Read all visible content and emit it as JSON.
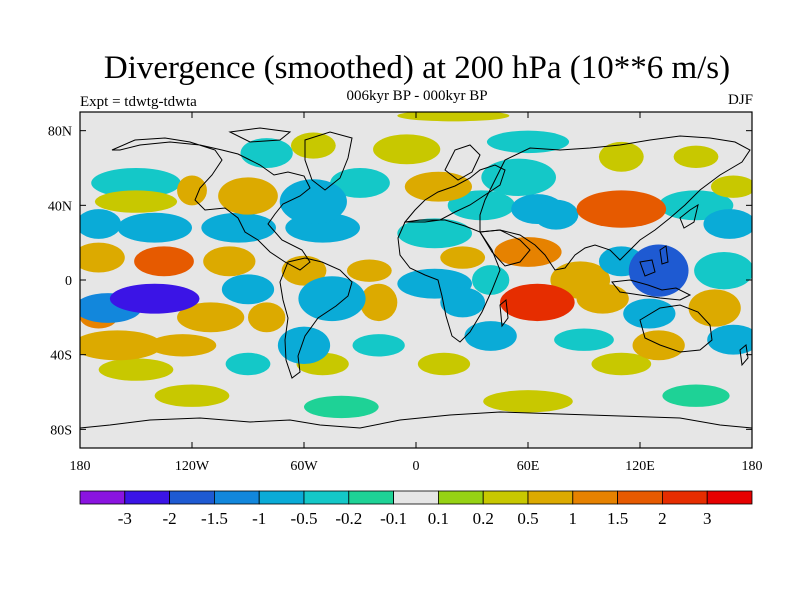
{
  "chart_data": {
    "type": "heatmap",
    "title": "Divergence (smoothed) at 200 hPa (10**6 m/s)",
    "subtitle": "006kyr BP - 000kyr BP",
    "left_label": "Expt = tdwtg-tdwta",
    "right_label": "DJF",
    "x_ticks": [
      "180",
      "120W",
      "60W",
      "0",
      "60E",
      "120E",
      "180"
    ],
    "x_tick_values": [
      -180,
      -120,
      -60,
      0,
      60,
      120,
      180
    ],
    "y_ticks": [
      "80N",
      "40N",
      "0",
      "40S",
      "80S"
    ],
    "y_tick_values": [
      80,
      40,
      0,
      -40,
      -80
    ],
    "xlim": [
      -180,
      180
    ],
    "ylim": [
      -90,
      90
    ],
    "colorbar": {
      "levels": [
        "-3",
        "-2",
        "-1.5",
        "-1",
        "-0.5",
        "-0.2",
        "-0.1",
        "0.1",
        "0.2",
        "0.5",
        "1",
        "1.5",
        "2",
        "3"
      ],
      "colors": [
        "#8a14e0",
        "#3b14e6",
        "#1e5ad2",
        "#1287dc",
        "#0aabd7",
        "#14c8c8",
        "#1ed296",
        "#e6e6e6",
        "#96d214",
        "#c8c800",
        "#dcaa00",
        "#e68200",
        "#e65a00",
        "#e62d00",
        "#e60000"
      ]
    },
    "anomaly_cells": [
      {
        "lon": 20,
        "lat": 88,
        "rx": 30,
        "ry": 3,
        "v": 0.2
      },
      {
        "lon": -80,
        "lat": 68,
        "rx": 14,
        "ry": 8,
        "v": -0.3
      },
      {
        "lon": -55,
        "lat": 72,
        "rx": 12,
        "ry": 7,
        "v": 0.3
      },
      {
        "lon": -5,
        "lat": 70,
        "rx": 18,
        "ry": 8,
        "v": 0.3
      },
      {
        "lon": 60,
        "lat": 74,
        "rx": 22,
        "ry": 6,
        "v": -0.3
      },
      {
        "lon": 110,
        "lat": 66,
        "rx": 12,
        "ry": 8,
        "v": 0.3
      },
      {
        "lon": 150,
        "lat": 66,
        "rx": 12,
        "ry": 6,
        "v": 0.3
      },
      {
        "lon": -150,
        "lat": 52,
        "rx": 24,
        "ry": 8,
        "v": -0.3
      },
      {
        "lon": -150,
        "lat": 42,
        "rx": 22,
        "ry": 6,
        "v": 0.3
      },
      {
        "lon": -120,
        "lat": 48,
        "rx": 8,
        "ry": 8,
        "v": 0.6
      },
      {
        "lon": -90,
        "lat": 45,
        "rx": 16,
        "ry": 10,
        "v": 0.8
      },
      {
        "lon": -55,
        "lat": 42,
        "rx": 18,
        "ry": 12,
        "v": -1.0
      },
      {
        "lon": -30,
        "lat": 52,
        "rx": 16,
        "ry": 8,
        "v": -0.5
      },
      {
        "lon": 12,
        "lat": 50,
        "rx": 18,
        "ry": 8,
        "v": 0.5
      },
      {
        "lon": 55,
        "lat": 55,
        "rx": 20,
        "ry": 10,
        "v": -0.5
      },
      {
        "lon": 35,
        "lat": 40,
        "rx": 18,
        "ry": 8,
        "v": -0.4
      },
      {
        "lon": 65,
        "lat": 38,
        "rx": 14,
        "ry": 8,
        "v": -0.6
      },
      {
        "lon": 110,
        "lat": 38,
        "rx": 24,
        "ry": 10,
        "v": 1.6
      },
      {
        "lon": 150,
        "lat": 40,
        "rx": 20,
        "ry": 8,
        "v": -0.4
      },
      {
        "lon": 168,
        "lat": 30,
        "rx": 14,
        "ry": 8,
        "v": -0.8
      },
      {
        "lon": 170,
        "lat": 50,
        "rx": 12,
        "ry": 6,
        "v": 0.4
      },
      {
        "lon": 75,
        "lat": 35,
        "rx": 12,
        "ry": 8,
        "v": -1.0
      },
      {
        "lon": -170,
        "lat": 30,
        "rx": 12,
        "ry": 8,
        "v": -1.0
      },
      {
        "lon": -140,
        "lat": 28,
        "rx": 20,
        "ry": 8,
        "v": -0.6
      },
      {
        "lon": -95,
        "lat": 28,
        "rx": 20,
        "ry": 8,
        "v": -0.6
      },
      {
        "lon": -50,
        "lat": 28,
        "rx": 20,
        "ry": 8,
        "v": -0.6
      },
      {
        "lon": 10,
        "lat": 25,
        "rx": 20,
        "ry": 8,
        "v": -0.5
      },
      {
        "lon": 60,
        "lat": 15,
        "rx": 18,
        "ry": 8,
        "v": 1.1
      },
      {
        "lon": 25,
        "lat": 12,
        "rx": 12,
        "ry": 6,
        "v": 0.8
      },
      {
        "lon": -170,
        "lat": 12,
        "rx": 14,
        "ry": 8,
        "v": 0.8
      },
      {
        "lon": -135,
        "lat": 10,
        "rx": 16,
        "ry": 8,
        "v": 1.5
      },
      {
        "lon": -100,
        "lat": 10,
        "rx": 14,
        "ry": 8,
        "v": 0.6
      },
      {
        "lon": -60,
        "lat": 5,
        "rx": 12,
        "ry": 8,
        "v": 0.5
      },
      {
        "lon": -25,
        "lat": 5,
        "rx": 12,
        "ry": 6,
        "v": 0.5
      },
      {
        "lon": -90,
        "lat": -5,
        "rx": 14,
        "ry": 8,
        "v": -0.6
      },
      {
        "lon": -45,
        "lat": -10,
        "rx": 18,
        "ry": 12,
        "v": -0.6
      },
      {
        "lon": 10,
        "lat": -2,
        "rx": 20,
        "ry": 8,
        "v": -0.8
      },
      {
        "lon": 40,
        "lat": 0,
        "rx": 10,
        "ry": 8,
        "v": -0.4
      },
      {
        "lon": 88,
        "lat": 0,
        "rx": 16,
        "ry": 10,
        "v": 0.8
      },
      {
        "lon": 110,
        "lat": 10,
        "rx": 12,
        "ry": 8,
        "v": -1.0
      },
      {
        "lon": 130,
        "lat": 5,
        "rx": 16,
        "ry": 14,
        "v": -2.0
      },
      {
        "lon": 165,
        "lat": 5,
        "rx": 16,
        "ry": 10,
        "v": -0.4
      },
      {
        "lon": -140,
        "lat": -10,
        "rx": 24,
        "ry": 8,
        "v": -2.2
      },
      {
        "lon": -165,
        "lat": -15,
        "rx": 18,
        "ry": 8,
        "v": -1.5
      },
      {
        "lon": -170,
        "lat": -20,
        "rx": 10,
        "ry": 6,
        "v": 1.2
      },
      {
        "lon": -110,
        "lat": -20,
        "rx": 18,
        "ry": 8,
        "v": 0.6
      },
      {
        "lon": -80,
        "lat": -20,
        "rx": 10,
        "ry": 8,
        "v": 0.6
      },
      {
        "lon": -20,
        "lat": -12,
        "rx": 10,
        "ry": 10,
        "v": 0.5
      },
      {
        "lon": 25,
        "lat": -12,
        "rx": 12,
        "ry": 8,
        "v": -0.8
      },
      {
        "lon": 65,
        "lat": -12,
        "rx": 20,
        "ry": 10,
        "v": 2.0
      },
      {
        "lon": 100,
        "lat": -10,
        "rx": 14,
        "ry": 8,
        "v": 0.8
      },
      {
        "lon": 125,
        "lat": -18,
        "rx": 14,
        "ry": 8,
        "v": -0.8
      },
      {
        "lon": 160,
        "lat": -15,
        "rx": 14,
        "ry": 10,
        "v": 0.6
      },
      {
        "lon": -160,
        "lat": -35,
        "rx": 24,
        "ry": 8,
        "v": 0.5
      },
      {
        "lon": -125,
        "lat": -35,
        "rx": 18,
        "ry": 6,
        "v": 0.6
      },
      {
        "lon": -60,
        "lat": -35,
        "rx": 14,
        "ry": 10,
        "v": -0.8
      },
      {
        "lon": -20,
        "lat": -35,
        "rx": 14,
        "ry": 6,
        "v": -0.5
      },
      {
        "lon": 40,
        "lat": -30,
        "rx": 14,
        "ry": 8,
        "v": -0.6
      },
      {
        "lon": 90,
        "lat": -32,
        "rx": 16,
        "ry": 6,
        "v": -0.5
      },
      {
        "lon": 130,
        "lat": -35,
        "rx": 14,
        "ry": 8,
        "v": 0.5
      },
      {
        "lon": 170,
        "lat": -32,
        "rx": 14,
        "ry": 8,
        "v": -0.6
      },
      {
        "lon": -90,
        "lat": -45,
        "rx": 12,
        "ry": 6,
        "v": -0.4
      },
      {
        "lon": -50,
        "lat": -45,
        "rx": 14,
        "ry": 6,
        "v": 0.4
      },
      {
        "lon": 15,
        "lat": -45,
        "rx": 14,
        "ry": 6,
        "v": 0.4
      },
      {
        "lon": -150,
        "lat": -48,
        "rx": 20,
        "ry": 6,
        "v": 0.3
      },
      {
        "lon": 110,
        "lat": -45,
        "rx": 16,
        "ry": 6,
        "v": 0.3
      },
      {
        "lon": -120,
        "lat": -62,
        "rx": 20,
        "ry": 6,
        "v": 0.2
      },
      {
        "lon": -40,
        "lat": -68,
        "rx": 20,
        "ry": 6,
        "v": -0.2
      },
      {
        "lon": 60,
        "lat": -65,
        "rx": 24,
        "ry": 6,
        "v": 0.2
      },
      {
        "lon": 150,
        "lat": -62,
        "rx": 18,
        "ry": 6,
        "v": -0.2
      }
    ]
  }
}
